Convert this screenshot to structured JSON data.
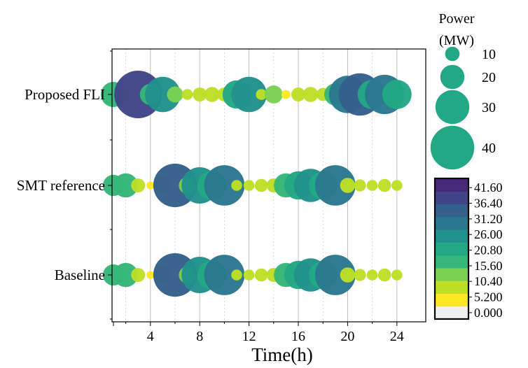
{
  "chart_data": {
    "type": "scatter",
    "xlabel": "Time(h)",
    "ylabel": "",
    "xlim": [
      0,
      25
    ],
    "x_ticks": [
      4,
      8,
      12,
      16,
      20,
      24
    ],
    "x_tick_labels": [
      "4",
      "8",
      "12",
      "16",
      "20",
      "24"
    ],
    "grid": "x only (alternating solid and dotted vertical lines)",
    "categories": [
      "Proposed FLI",
      "SMT reference",
      "Baseline"
    ],
    "hours": [
      1,
      2,
      3,
      4,
      5,
      6,
      7,
      8,
      9,
      10,
      11,
      12,
      13,
      14,
      15,
      16,
      17,
      18,
      19,
      20,
      21,
      22,
      23,
      24
    ],
    "series": [
      {
        "name": "Proposed FLI",
        "power": [
          20,
          5,
          42,
          16,
          30,
          11,
          6,
          9,
          10,
          9,
          23,
          30,
          6,
          13,
          4,
          9,
          10,
          8,
          17,
          32,
          37,
          24,
          34,
          24
        ]
      },
      {
        "name": "SMT reference",
        "power": [
          16,
          19,
          9,
          3,
          14,
          38,
          12,
          31,
          24,
          35,
          6,
          6,
          8,
          9,
          19,
          23,
          28,
          23,
          35,
          10,
          7,
          6,
          8,
          6
        ]
      },
      {
        "name": "Baseline",
        "power": [
          16,
          19,
          9,
          3,
          14,
          38,
          12,
          31,
          24,
          35,
          6,
          6,
          8,
          9,
          19,
          23,
          28,
          23,
          35,
          10,
          7,
          6,
          8,
          6
        ]
      }
    ],
    "size_legend": {
      "title": "Power\n(MW)",
      "values": [
        10,
        20,
        30,
        40
      ],
      "labels": [
        "10",
        "20",
        "30",
        "40"
      ]
    },
    "colorbar": {
      "vmin": 0,
      "vmax": 46.8,
      "step": 5.2,
      "tick_labels": [
        "41.60",
        "36.40",
        "31.20",
        "26.00",
        "20.80",
        "15.60",
        "10.40",
        "5.200",
        "0.000"
      ],
      "colors": [
        "#efefef",
        "#fde725",
        "#bddf26",
        "#7ad151",
        "#35b779",
        "#22a884",
        "#21918c",
        "#2a788e",
        "#355f8d",
        "#414487",
        "#482878"
      ]
    }
  }
}
